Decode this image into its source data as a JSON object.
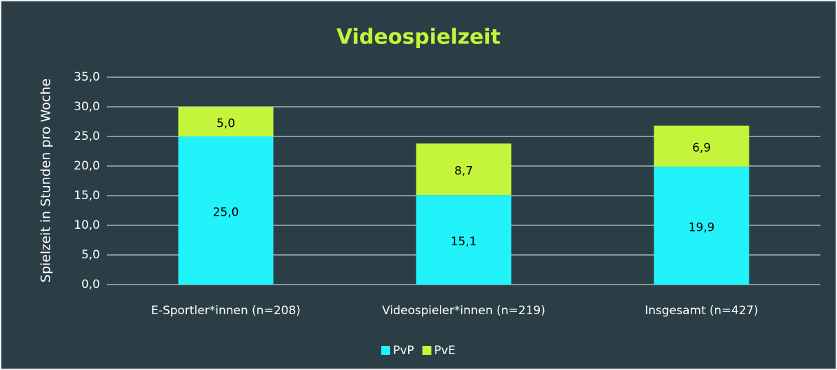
{
  "chart_data": {
    "type": "bar",
    "stacked": true,
    "title": "Videospielzeit",
    "ylabel": "Spielzeit in Stunden pro Woche",
    "categories": [
      "E-Sportler*innen (n=208)",
      "Videospieler*innen (n=219)",
      "Insgesamt (n=427)"
    ],
    "series": [
      {
        "name": "PvP",
        "color": "#22f2fa",
        "values": [
          25.0,
          15.1,
          19.9
        ],
        "value_labels": [
          "25,0",
          "15,1",
          "19,9"
        ]
      },
      {
        "name": "PvE",
        "color": "#c4f53a",
        "values": [
          5.0,
          8.7,
          6.9
        ],
        "value_labels": [
          "5,0",
          "8,7",
          "6,9"
        ]
      }
    ],
    "ylim": [
      0,
      35
    ],
    "yticks": [
      {
        "value": 0,
        "label": "0,0"
      },
      {
        "value": 5,
        "label": "5,0"
      },
      {
        "value": 10,
        "label": "10,0"
      },
      {
        "value": 15,
        "label": "15,0"
      },
      {
        "value": 20,
        "label": "20,0"
      },
      {
        "value": 25,
        "label": "25,0"
      },
      {
        "value": 30,
        "label": "30,0"
      },
      {
        "value": 35,
        "label": "35,0"
      }
    ],
    "grid": true,
    "legend": "bottom"
  }
}
